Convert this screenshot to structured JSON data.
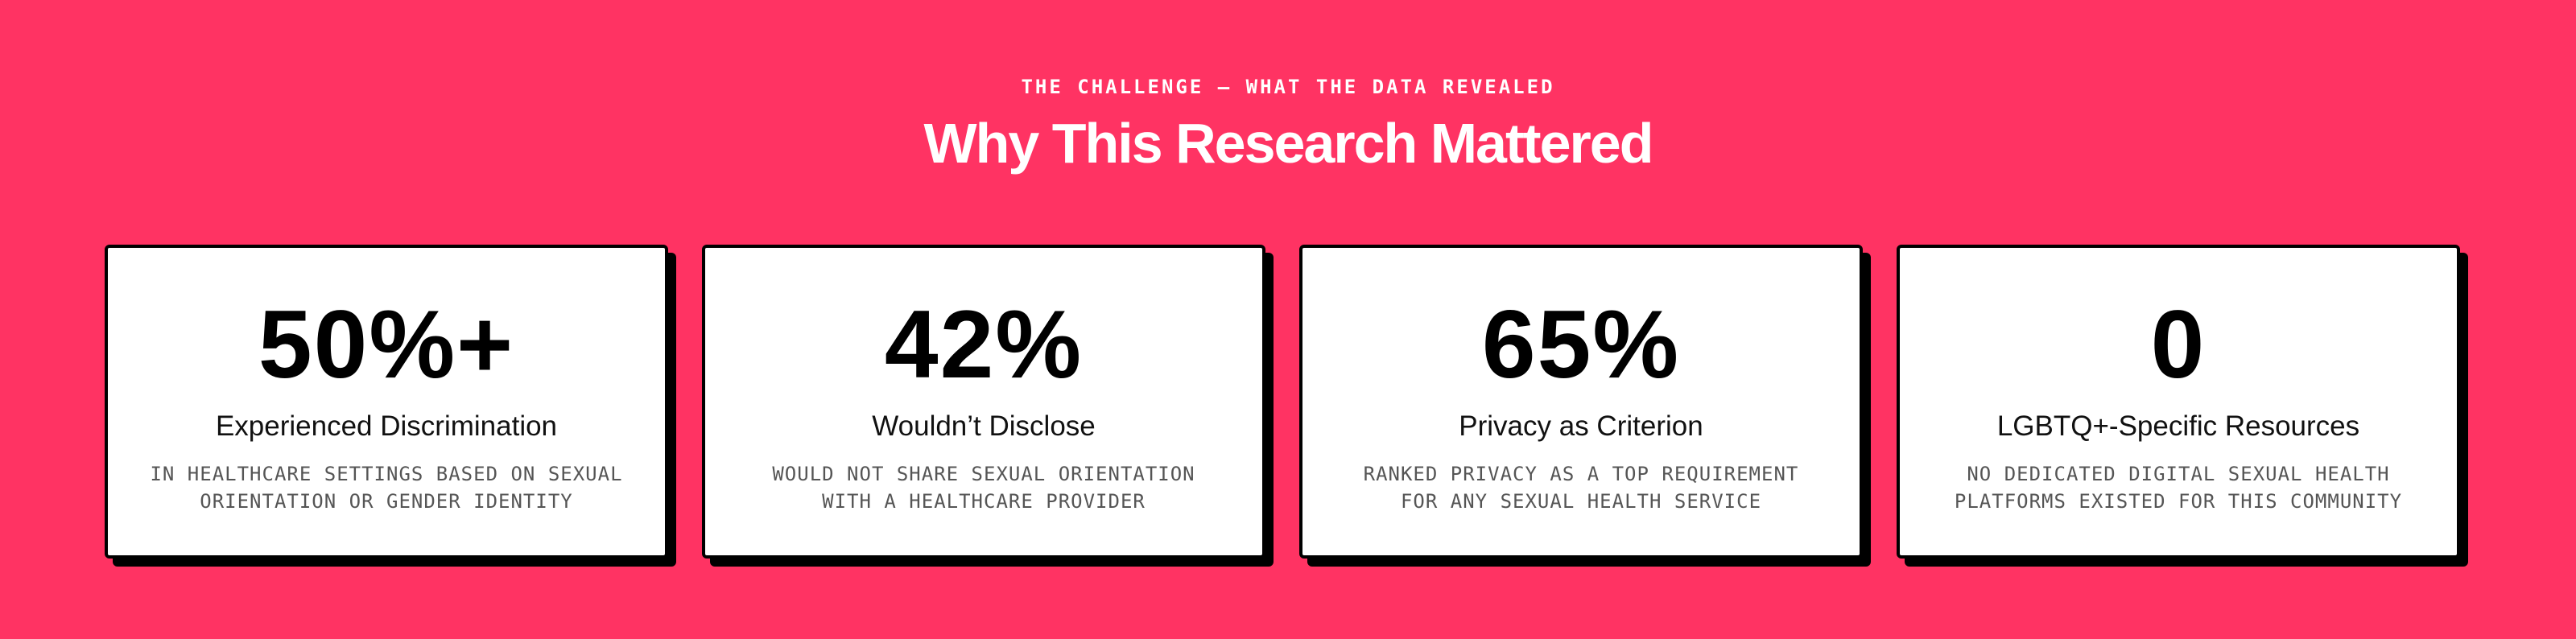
{
  "header": {
    "eyebrow": "THE CHALLENGE — WHAT THE DATA REVEALED",
    "title": "Why This Research Mattered"
  },
  "cards": [
    {
      "value": "50%+",
      "label": "Experienced Discrimination",
      "description": [
        "IN HEALTHCARE SETTINGS BASED ON SEXUAL",
        "ORIENTATION OR GENDER IDENTITY"
      ]
    },
    {
      "value": "42%",
      "label": "Wouldn’t Disclose",
      "description": [
        "WOULD NOT SHARE SEXUAL ORIENTATION",
        "WITH A HEALTHCARE PROVIDER"
      ]
    },
    {
      "value": "65%",
      "label": "Privacy as Criterion",
      "description": [
        "RANKED PRIVACY AS A TOP REQUIREMENT",
        "FOR ANY SEXUAL HEALTH SERVICE"
      ]
    },
    {
      "value": "0",
      "label": "LGBTQ+-Specific Resources",
      "description": [
        "NO DEDICATED DIGITAL SEXUAL HEALTH",
        "PLATFORMS EXISTED FOR THIS COMMUNITY"
      ]
    }
  ]
}
